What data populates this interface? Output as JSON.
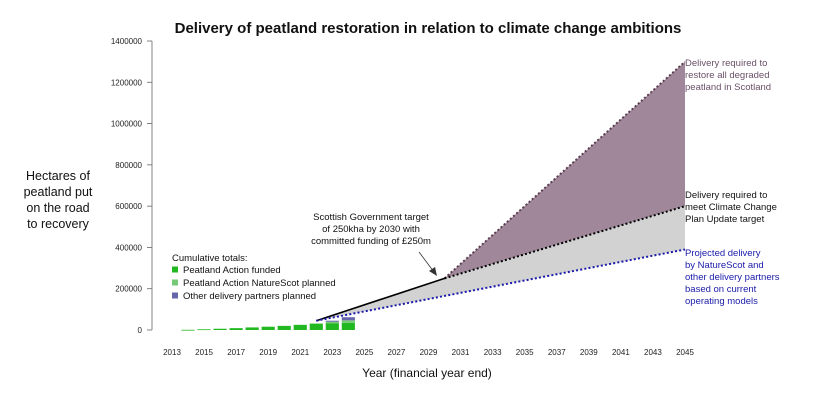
{
  "chart_data": {
    "type": "area",
    "title": "Delivery of peatland restoration in relation to climate change ambitions",
    "ylabel": [
      "Hectares of",
      "peatland put",
      "on the road",
      "to recovery"
    ],
    "xlabel": "Year (financial year end)",
    "ylim": [
      0,
      1400000
    ],
    "xlim": [
      2013,
      2045
    ],
    "y_ticks": [
      0,
      200000,
      400000,
      600000,
      800000,
      1000000,
      1200000,
      1400000
    ],
    "x_ticks": [
      2013,
      2015,
      2017,
      2019,
      2021,
      2023,
      2025,
      2027,
      2029,
      2031,
      2033,
      2035,
      2037,
      2039,
      2041,
      2043,
      2045
    ],
    "grid": false,
    "bars": {
      "years": [
        2014,
        2015,
        2016,
        2017,
        2018,
        2019,
        2020,
        2021,
        2022,
        2023,
        2024
      ],
      "peatland_action_funded": [
        1000,
        3500,
        6000,
        9000,
        12500,
        16000,
        20000,
        25000,
        31000,
        33000,
        35000
      ],
      "peatland_action_naturescot_planned": [
        0,
        0,
        0,
        0,
        0,
        0,
        0,
        0,
        0,
        7000,
        12000
      ],
      "other_delivery_partners_planned": [
        0,
        0,
        0,
        0,
        0,
        0,
        0,
        0,
        0,
        5000,
        15000
      ]
    },
    "lines": [
      {
        "id": "sg_target",
        "x": [
          2022,
          2030
        ],
        "y": [
          45000,
          250000
        ],
        "color": "#000000",
        "style": "solid"
      },
      {
        "id": "all_degraded",
        "x": [
          2030,
          2045
        ],
        "y": [
          250000,
          1300000
        ],
        "color": "#5a3d50",
        "style": "dotted"
      },
      {
        "id": "ccpu",
        "x": [
          2030,
          2045
        ],
        "y": [
          250000,
          600000
        ],
        "color": "#000000",
        "style": "dotted"
      },
      {
        "id": "projected",
        "x": [
          2022,
          2045
        ],
        "y": [
          45000,
          390000
        ],
        "color": "#1a1aaa",
        "style": "dotted"
      }
    ],
    "areas": [
      {
        "id": "degraded_gap",
        "color": "#a0889a"
      },
      {
        "id": "ccpu_gap",
        "color": "#d2d2d2"
      }
    ],
    "legend": {
      "title": "Cumulative totals:",
      "placement": "middle-left",
      "entries": [
        {
          "label": "Peatland Action funded",
          "color": "#22b822"
        },
        {
          "label": "Peatland Action NatureScot planned",
          "color": "#77c877"
        },
        {
          "label": "Other delivery partners planned",
          "color": "#6666aa"
        }
      ]
    },
    "annotations": {
      "sg_target": [
        "Scottish Government target",
        "of 250kha by 2030 with",
        "committed funding of £250m"
      ],
      "all_degraded": [
        "Delivery required to",
        "restore all degraded",
        "peatland in Scotland"
      ],
      "ccpu": [
        "Delivery required to",
        "meet Climate Change",
        "Plan Update target"
      ],
      "projected": [
        "Projected delivery",
        "by NatureScot and",
        "other delivery partners",
        "based on current",
        "operating models"
      ]
    },
    "colors": {
      "all_degraded_text": "#6a5068",
      "ccpu_text": "#111111",
      "projected_text": "#1a1aaa",
      "sg_text": "#111111"
    }
  }
}
